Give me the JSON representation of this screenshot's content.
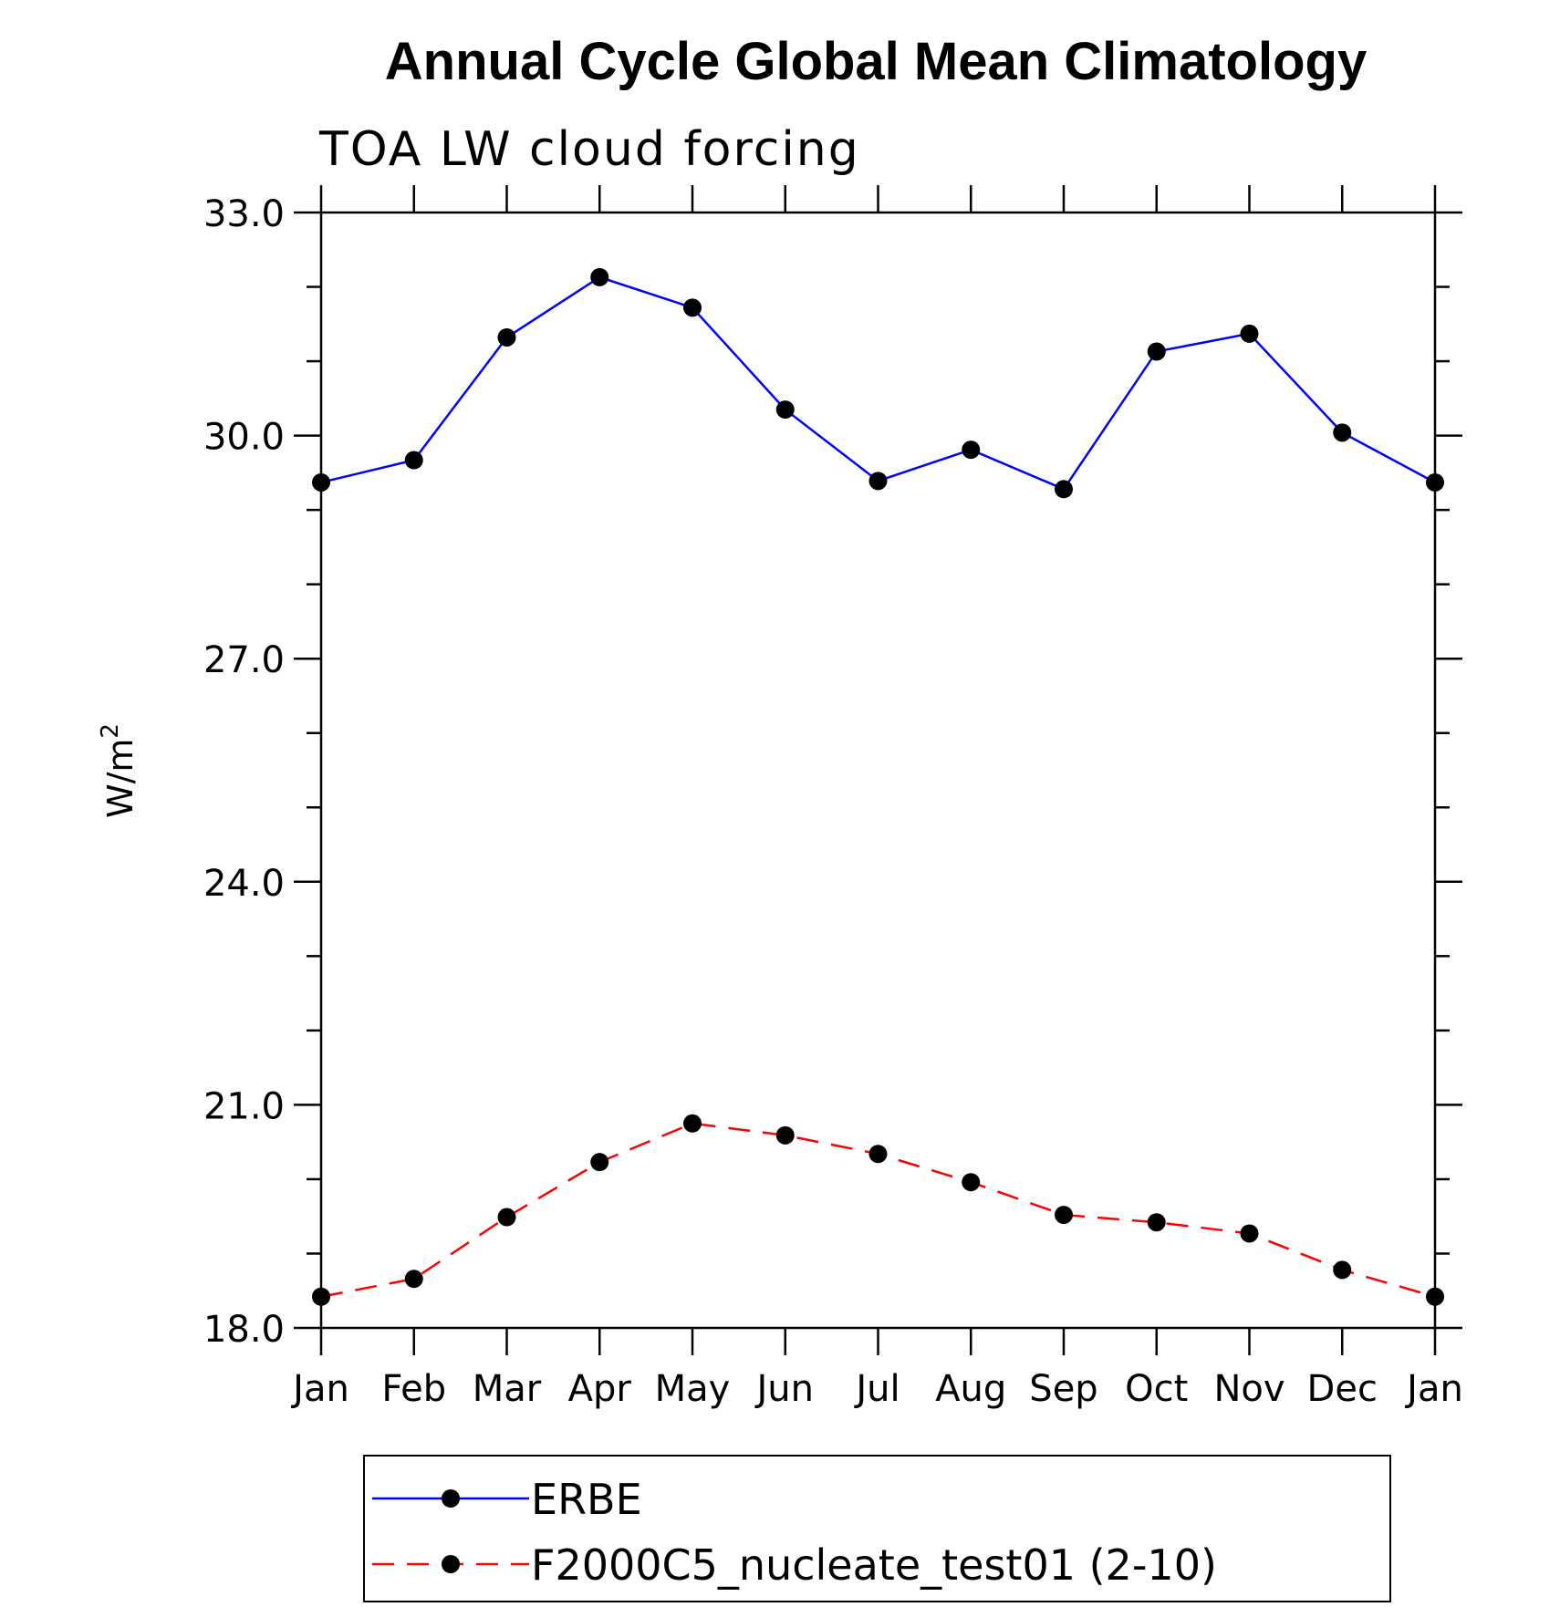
{
  "chart_data": {
    "type": "line",
    "title": "Annual Cycle Global Mean Climatology",
    "subtitle": "TOA LW cloud forcing",
    "xlabel": "",
    "ylabel": "W/m",
    "ylabel_superscript": "2",
    "categories": [
      "Jan",
      "Feb",
      "Mar",
      "Apr",
      "May",
      "Jun",
      "Jul",
      "Aug",
      "Sep",
      "Oct",
      "Nov",
      "Dec",
      "Jan"
    ],
    "ylim": [
      18.0,
      33.0
    ],
    "yticks": [
      "18.0",
      "21.0",
      "24.0",
      "27.0",
      "30.0",
      "33.0"
    ],
    "grid": false,
    "legend_position": "bottom",
    "series": [
      {
        "name": "ERBE",
        "color": "#0000ff",
        "line_style": "solid",
        "marker": "filled-circle",
        "values": [
          29.37,
          29.67,
          31.32,
          32.13,
          31.72,
          30.35,
          29.39,
          29.81,
          29.28,
          31.13,
          31.37,
          30.04,
          29.37
        ]
      },
      {
        "name": "F2000C5_nucleate_test01 (2-10)",
        "color": "#ff0000",
        "line_style": "dashed",
        "marker": "filled-circle",
        "values": [
          18.42,
          18.66,
          19.49,
          20.23,
          20.75,
          20.59,
          20.34,
          19.96,
          19.52,
          19.42,
          19.27,
          18.78,
          18.42
        ]
      }
    ]
  }
}
